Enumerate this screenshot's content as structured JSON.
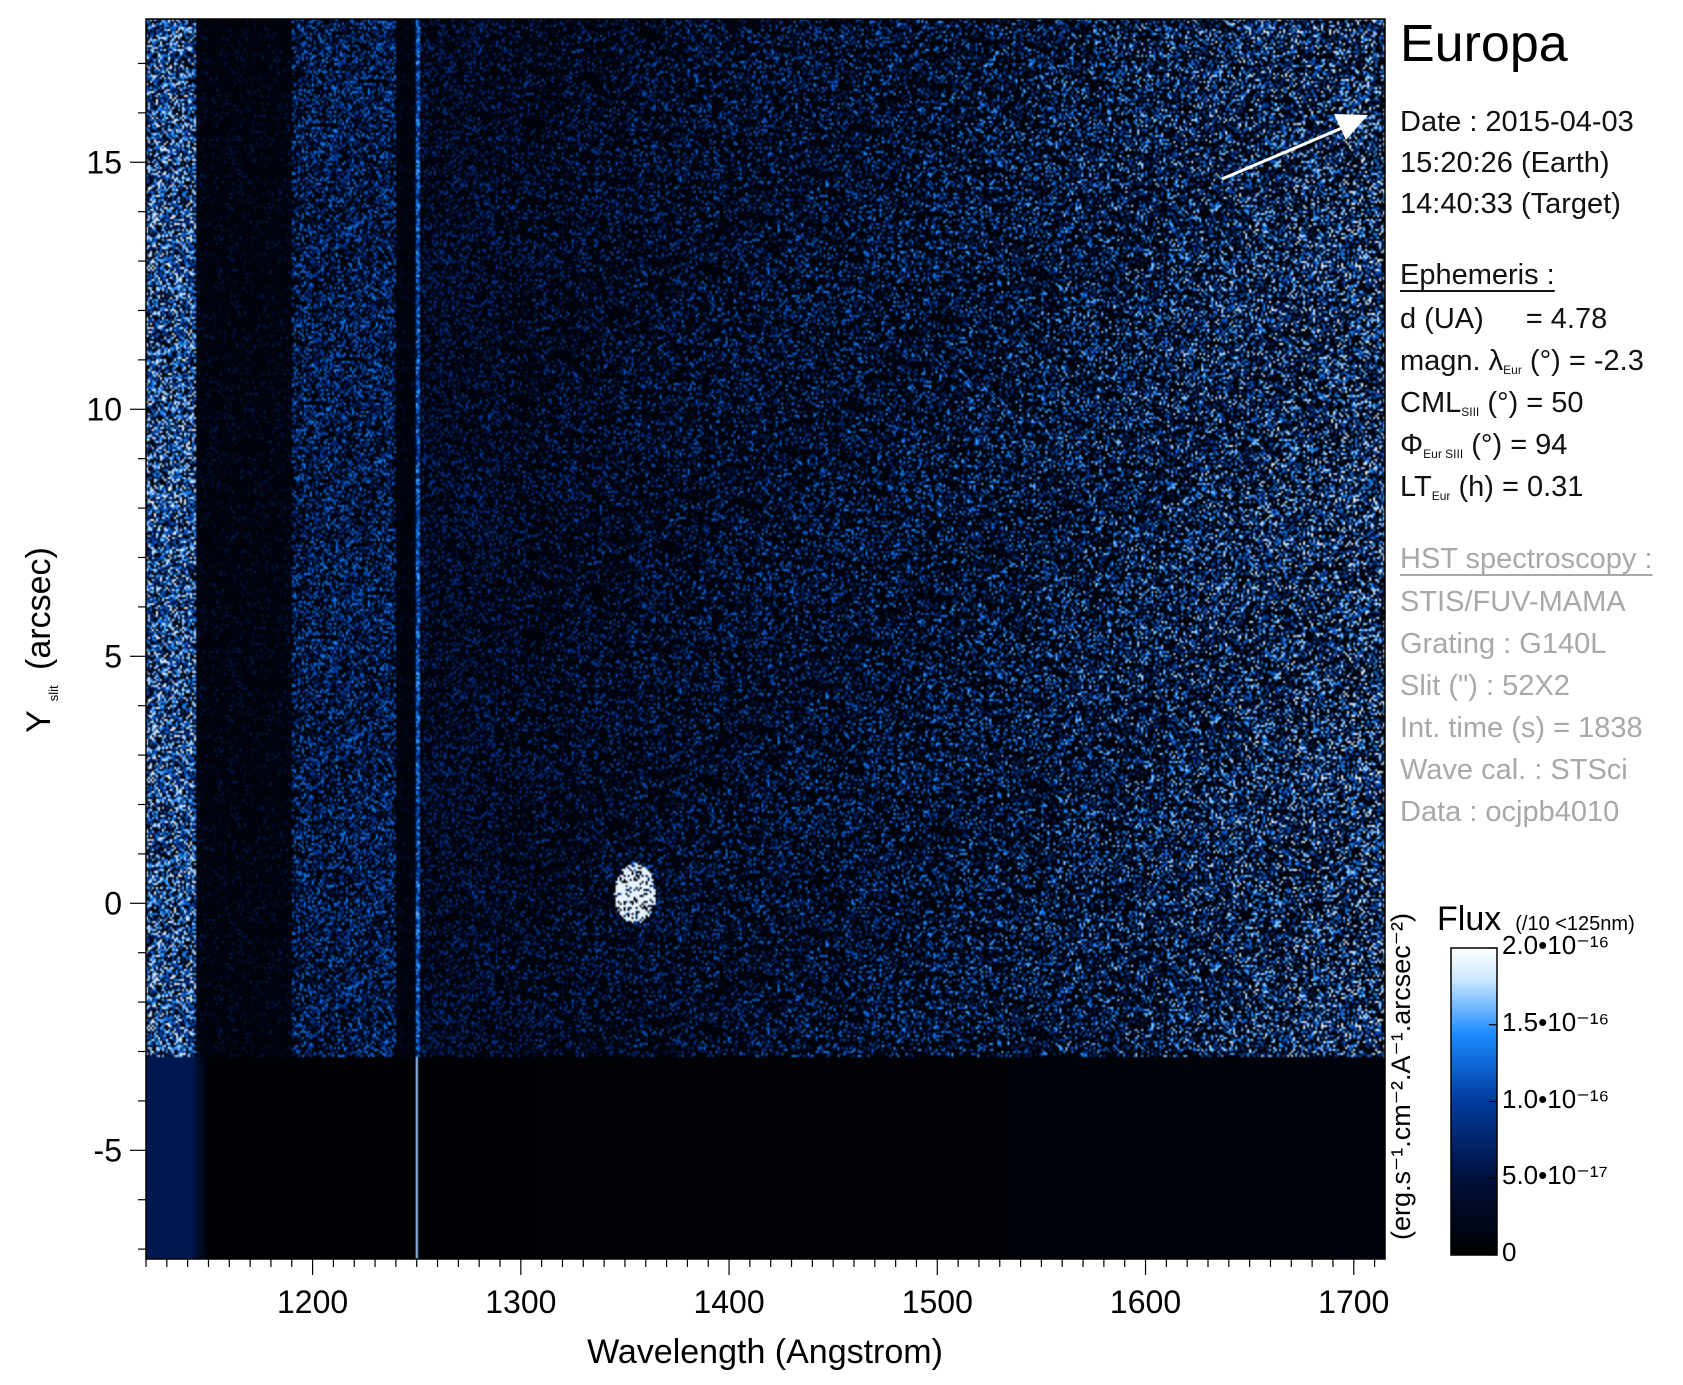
{
  "chart_data": {
    "type": "heatmap",
    "title": "Europa",
    "xlabel": "Wavelength (Angstrom)",
    "ylabel_main": "Y",
    "ylabel_sub": "slit",
    "ylabel_unit": "(arcsec)",
    "xlim": [
      1120,
      1715
    ],
    "ylim": [
      -7.2,
      17.9
    ],
    "x_ticks": [
      1200,
      1300,
      1400,
      1500,
      1600,
      1700
    ],
    "x_tick_labels": [
      "1200",
      "1300",
      "1400",
      "1500",
      "1600",
      "1700"
    ],
    "x_minor_step": 10,
    "y_ticks": [
      -5,
      0,
      5,
      10,
      15
    ],
    "y_tick_labels": [
      "-5",
      "0",
      "5",
      "10",
      "15"
    ],
    "y_minor_step": 1,
    "slit_lower_edge_arcsec": -3.1,
    "geocoronal_line_angstrom": 1250,
    "bright_feature": {
      "x": 1355,
      "y": 0.2
    },
    "colormap": [
      "#000000",
      "#00103c",
      "#003a9e",
      "#1a8cff",
      "#cfe8ff",
      "#ffffff"
    ],
    "colorbar": {
      "title": "Flux",
      "note": "(/10 <125nm)",
      "unit": "(erg.s⁻¹.cm⁻².A⁻¹.arcsec⁻²)",
      "ticks": [
        {
          "value": 2e-16,
          "label": "2.0•10⁻¹⁶"
        },
        {
          "value": 1.5e-16,
          "label": "1.5•10⁻¹⁶"
        },
        {
          "value": 1e-16,
          "label": "1.0•10⁻¹⁶"
        },
        {
          "value": 5e-17,
          "label": "5.0•10⁻¹⁷"
        },
        {
          "value": 0,
          "label": "0"
        }
      ],
      "range": [
        0,
        2e-16
      ]
    },
    "grid": false
  },
  "info": {
    "date_line": "Date : 2015-04-03",
    "earth_time": "15:20:26 (Earth)",
    "target_time": "14:40:33 (Target)",
    "ephemeris_header": "Ephemeris :",
    "d_label": "d (UA)",
    "d_value": "= 4.78",
    "magn_pre": "magn. λ",
    "magn_sub": "Eur",
    "magn_post": "(°)  = -2.3",
    "cml_pre": "CML",
    "cml_sub": "SIII",
    "cml_post": "(°) = 50",
    "phi_pre": "Φ",
    "phi_sub": "Eur SIII",
    "phi_post": "(°) = 94",
    "lt_pre": "LT",
    "lt_sub": "Eur",
    "lt_post": "(h) = 0.31",
    "hst_header": "HST spectroscopy :",
    "instrument": "STIS/FUV-MAMA",
    "grating": "Grating : G140L",
    "slit": "Slit (\") : 52X2",
    "int_time": "Int. time (s) = 1838",
    "wave_cal": "Wave cal. : STSci",
    "data_id": "Data : ocjpb4010"
  }
}
